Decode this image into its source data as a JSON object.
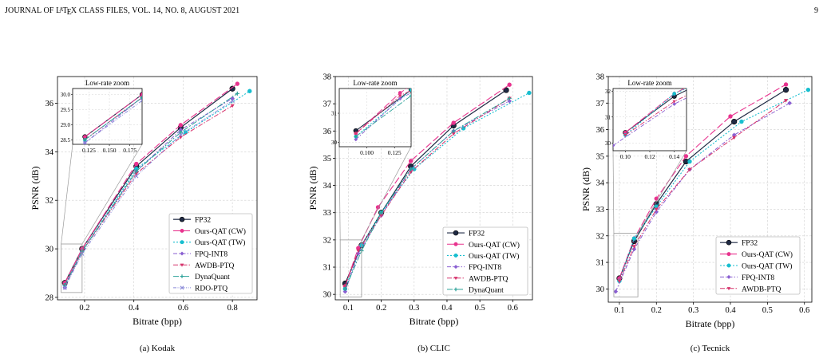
{
  "header": {
    "prefix": "JOURNAL OF",
    "latex_word": "LaTeX",
    "suffix": "CLASS FILES, VOL. 14, NO. 8, AUGUST 2021",
    "page_number": "9"
  },
  "colors": {
    "FP32": "#1f2a44",
    "Ours-QAT (CW)": "#e8338e",
    "Ours-QAT (TW)": "#17becf",
    "FPQ-INT8": "#8a5fd1",
    "AWDB-PTQ": "#d6336c",
    "DynaQuant": "#2aa198",
    "RDO-PTQ": "#8a8ad8"
  },
  "chart_data": [
    {
      "type": "line",
      "caption": "(a) Kodak",
      "xlabel": "Bitrate (bpp)",
      "ylabel": "PSNR (dB)",
      "xlim": [
        0.09,
        0.9
      ],
      "ylim": [
        27.9,
        37.1
      ],
      "xticks": [
        0.2,
        0.4,
        0.6,
        0.8
      ],
      "yticks": [
        28,
        30,
        32,
        34,
        36
      ],
      "grid": true,
      "legend_position": "lower-right",
      "series": [
        {
          "name": "FP32",
          "x": [
            0.12,
            0.19,
            0.41,
            0.59,
            0.8
          ],
          "y": [
            28.6,
            30.0,
            33.4,
            35.0,
            36.6
          ]
        },
        {
          "name": "Ours-QAT (CW)",
          "x": [
            0.12,
            0.19,
            0.41,
            0.59,
            0.82
          ],
          "y": [
            28.6,
            30.0,
            33.5,
            35.1,
            36.8
          ]
        },
        {
          "name": "Ours-QAT (TW)",
          "x": [
            0.12,
            0.19,
            0.41,
            0.61,
            0.87
          ],
          "y": [
            28.5,
            29.9,
            33.3,
            34.8,
            36.5
          ]
        },
        {
          "name": "FPQ-INT8",
          "x": [
            0.12,
            0.19,
            0.41,
            0.59,
            0.8
          ],
          "y": [
            28.4,
            29.9,
            33.2,
            34.9,
            36.2
          ]
        },
        {
          "name": "AWDB-PTQ",
          "x": [
            0.12,
            0.19,
            0.41,
            0.59,
            0.8
          ],
          "y": [
            28.5,
            29.9,
            33.1,
            34.6,
            35.9
          ]
        },
        {
          "name": "DynaQuant",
          "x": [
            0.12,
            0.19,
            0.41,
            0.59,
            0.82
          ],
          "y": [
            28.5,
            29.9,
            33.2,
            34.8,
            36.4
          ]
        },
        {
          "name": "RDO-PTQ",
          "x": [
            0.12,
            0.19,
            0.41,
            0.59,
            0.8
          ],
          "y": [
            28.4,
            29.8,
            33.0,
            34.7,
            36.1
          ]
        }
      ],
      "inset": {
        "title": "Low-rate zoom",
        "xlim": [
          0.105,
          0.19
        ],
        "ylim": [
          28.35,
          30.2
        ],
        "xticks": [
          0.125,
          0.15,
          0.175
        ],
        "xtick_labels": [
          "0.125",
          "0.150",
          "0.175"
        ],
        "yticks": [
          28.5,
          29.0,
          29.5,
          30.0
        ],
        "ytick_labels": [
          "28.5",
          "29.0",
          "29.5",
          "30.0"
        ],
        "zoom_xlim": [
          0.105,
          0.19
        ],
        "zoom_ylim": [
          28.2,
          30.2
        ]
      }
    },
    {
      "type": "line",
      "caption": "(b) CLIC",
      "xlabel": "Bitrate (bpp)",
      "ylabel": "PSNR (dB)",
      "xlim": [
        0.06,
        0.66
      ],
      "ylim": [
        29.8,
        38.0
      ],
      "xticks": [
        0.1,
        0.2,
        0.3,
        0.4,
        0.5,
        0.6
      ],
      "yticks": [
        30,
        31,
        32,
        33,
        34,
        35,
        36,
        37,
        38
      ],
      "grid": true,
      "legend_position": "lower-right",
      "series": [
        {
          "name": "FP32",
          "x": [
            0.09,
            0.14,
            0.2,
            0.29,
            0.42,
            0.58
          ],
          "y": [
            30.4,
            31.8,
            33.0,
            34.7,
            36.2,
            37.5
          ]
        },
        {
          "name": "Ours-QAT (CW)",
          "x": [
            0.09,
            0.13,
            0.19,
            0.29,
            0.42,
            0.59
          ],
          "y": [
            30.3,
            31.7,
            33.2,
            34.9,
            36.3,
            37.7
          ]
        },
        {
          "name": "Ours-QAT (TW)",
          "x": [
            0.09,
            0.14,
            0.2,
            0.3,
            0.45,
            0.65
          ],
          "y": [
            30.2,
            31.8,
            33.0,
            34.6,
            36.1,
            37.4
          ]
        },
        {
          "name": "FPQ-INT8",
          "x": [
            0.09,
            0.13,
            0.2,
            0.29,
            0.42,
            0.59
          ],
          "y": [
            30.1,
            31.5,
            32.9,
            34.6,
            36.0,
            37.1
          ]
        },
        {
          "name": "AWDB-PTQ",
          "x": [
            0.09,
            0.13,
            0.2,
            0.29,
            0.42,
            0.59
          ],
          "y": [
            30.3,
            31.6,
            32.9,
            34.5,
            35.9,
            37.2
          ]
        },
        {
          "name": "DynaQuant",
          "x": [
            0.09,
            0.14,
            0.2,
            0.29,
            0.42,
            0.59
          ],
          "y": [
            30.2,
            31.6,
            33.0,
            34.6,
            36.0,
            37.2
          ]
        }
      ],
      "inset": {
        "title": "Low-rate zoom",
        "xlim": [
          0.075,
          0.14
        ],
        "ylim": [
          29.85,
          31.85
        ],
        "xticks": [
          0.1,
          0.125
        ],
        "xtick_labels": [
          "0.100",
          "0.125"
        ],
        "yticks": [
          30,
          31
        ],
        "ytick_labels": [
          "30",
          "31"
        ],
        "zoom_xlim": [
          0.075,
          0.14
        ],
        "zoom_ylim": [
          29.9,
          32.0
        ]
      }
    },
    {
      "type": "line",
      "caption": "(c) Tecnick",
      "xlabel": "Bitrate (bpp)",
      "ylabel": "PSNR (dB)",
      "xlim": [
        0.07,
        0.62
      ],
      "ylim": [
        29.5,
        38.0
      ],
      "xticks": [
        0.1,
        0.2,
        0.3,
        0.4,
        0.5,
        0.6
      ],
      "yticks": [
        30,
        31,
        32,
        33,
        34,
        35,
        36,
        37,
        38
      ],
      "grid": true,
      "legend_position": "lower-right",
      "series": [
        {
          "name": "FP32",
          "x": [
            0.1,
            0.14,
            0.2,
            0.28,
            0.41,
            0.55
          ],
          "y": [
            30.4,
            31.8,
            33.2,
            34.8,
            36.3,
            37.5
          ]
        },
        {
          "name": "Ours-QAT (CW)",
          "x": [
            0.1,
            0.14,
            0.2,
            0.28,
            0.4,
            0.55
          ],
          "y": [
            30.4,
            31.9,
            33.4,
            35.0,
            36.5,
            37.7
          ]
        },
        {
          "name": "Ours-QAT (TW)",
          "x": [
            0.1,
            0.14,
            0.2,
            0.29,
            0.43,
            0.61
          ],
          "y": [
            30.3,
            31.9,
            33.1,
            34.8,
            36.3,
            37.5
          ]
        },
        {
          "name": "FPQ-INT8",
          "x": [
            0.09,
            0.14,
            0.2,
            0.29,
            0.41,
            0.56
          ],
          "y": [
            29.9,
            31.5,
            32.9,
            34.5,
            35.8,
            37.0
          ]
        },
        {
          "name": "AWDB-PTQ",
          "x": [
            0.1,
            0.14,
            0.2,
            0.29,
            0.41,
            0.55
          ],
          "y": [
            30.3,
            31.6,
            33.0,
            34.5,
            35.7,
            37.1
          ]
        }
      ],
      "inset": {
        "title": "Low-rate zoom",
        "xlim": [
          0.09,
          0.15
        ],
        "ylim": [
          29.7,
          32.1
        ],
        "xticks": [
          0.1,
          0.12,
          0.14
        ],
        "xtick_labels": [
          "0.10",
          "0.12",
          "0.14"
        ],
        "yticks": [
          30,
          31,
          32
        ],
        "ytick_labels": [
          "30",
          "31",
          "32"
        ],
        "zoom_xlim": [
          0.085,
          0.15
        ],
        "zoom_ylim": [
          29.7,
          32.1
        ]
      }
    }
  ]
}
